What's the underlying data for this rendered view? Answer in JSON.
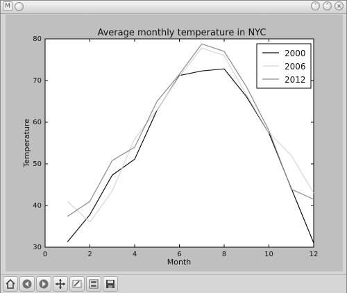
{
  "window": {
    "app_icon_glyph": "M"
  },
  "chart_data": {
    "type": "line",
    "title": "Average monthly temperature in NYC",
    "xlabel": "Month",
    "ylabel": "Temperature",
    "xlim": [
      0,
      12
    ],
    "ylim": [
      30,
      80
    ],
    "xticks": [
      "0",
      "2",
      "4",
      "6",
      "8",
      "10",
      "12"
    ],
    "yticks": [
      "30",
      "40",
      "50",
      "60",
      "70",
      "80"
    ],
    "grid": false,
    "legend_position": "top-right",
    "x": [
      1,
      2,
      3,
      4,
      5,
      6,
      7,
      8,
      9,
      10,
      11,
      12
    ],
    "series": [
      {
        "name": "2000",
        "color": "#111111",
        "values": [
          31.3,
          37.8,
          47.3,
          51.1,
          62.9,
          71.2,
          72.3,
          72.8,
          66.1,
          57.4,
          44.1,
          31.0
        ]
      },
      {
        "name": "2006",
        "color": "#d6d6d6",
        "values": [
          41.0,
          36.0,
          43.5,
          56.0,
          63.0,
          71.0,
          77.8,
          76.0,
          66.5,
          57.5,
          52.0,
          43.0
        ]
      },
      {
        "name": "2012",
        "color": "#8a8a8a",
        "values": [
          37.4,
          41.0,
          50.8,
          54.0,
          65.0,
          71.5,
          78.8,
          77.0,
          68.5,
          58.0,
          43.9,
          41.5
        ]
      }
    ]
  },
  "toolbar": {
    "buttons": [
      "home-icon",
      "back-icon",
      "forward-icon",
      "pan-icon",
      "zoom-icon",
      "subplots-icon",
      "save-icon"
    ]
  }
}
